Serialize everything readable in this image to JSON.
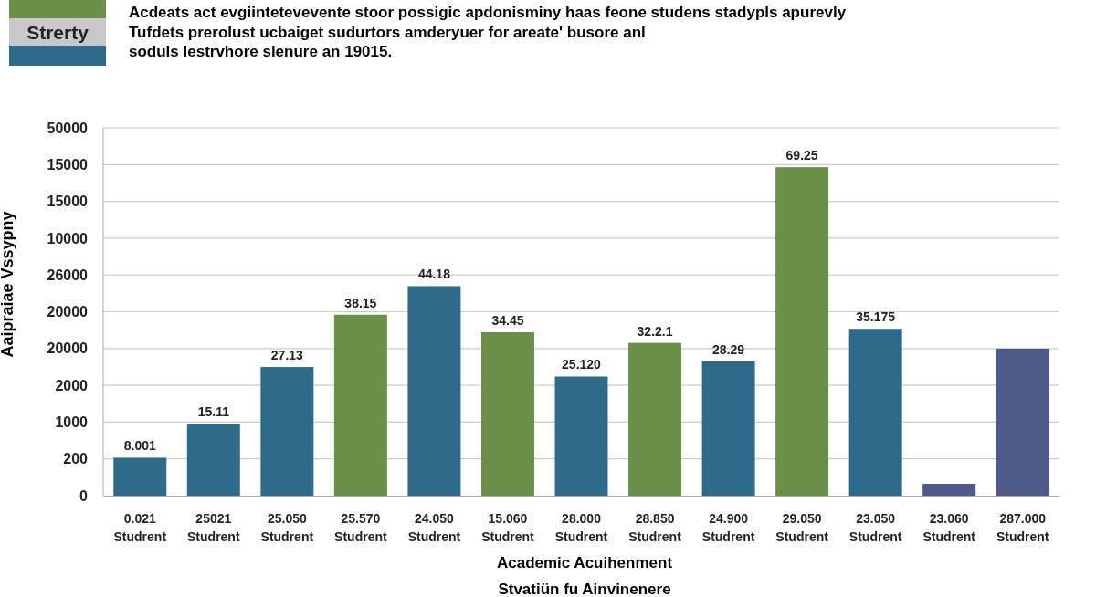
{
  "chart_data": {
    "type": "bar",
    "title": "Acdeats act evgiintetevevente stoor possigic apdonisminy haas feone studens stadypls apurevly",
    "subtitle": "Tufdets prerolust ucbaiget sudurtors amderyuer for areate' busore anl soduls lestrvhore slenure an 19015.",
    "xlabel": "Academic Acuihenment",
    "annotations": [
      "Strerty",
      "Stvatiün fu Ainvinenere",
      "Aaipraiae Vssypny",
      "0",
      "200",
      "1000",
      "2000",
      "20000",
      "20000",
      "26000",
      "10000",
      "15000",
      "15000",
      "50000"
    ],
    "categories": [
      "0.021 Studrent",
      "25021 Studrent",
      "25.050 Studrent",
      "25.570 Studrent",
      "24.050 Studrent",
      "15.060 Studrent",
      "28.000 Studrent",
      "28.850 Studrent",
      "24.900 Studrent",
      "29.050 Studrent",
      "23.050 Studrent",
      "23.060 Studrent",
      "287.000 Studrent"
    ],
    "values": [
      8.001,
      15.11,
      27.13,
      38.15,
      44.18,
      34.45,
      25.12,
      32.21,
      28.29,
      69.25,
      35.175,
      2.5,
      31
    ],
    "colors": [
      "#2e6b8a",
      "#2e6b8a",
      "#2e6b8a",
      "#6a8f47",
      "#2e6b8a",
      "#6a8f47",
      "#2e6b8a",
      "#6a8f47",
      "#2e6b8a",
      "#6a8f47",
      "#2e6b8a",
      "#4f5a8a",
      "#4f5a8a"
    ],
    "value_labels": [
      "8.001",
      "15.11",
      "27.13",
      "38.15",
      "44.18",
      "34.45",
      "25.120",
      "32.2.1",
      "28.29",
      "69.25",
      "35.175",
      null,
      null
    ],
    "grid": "y"
  }
}
